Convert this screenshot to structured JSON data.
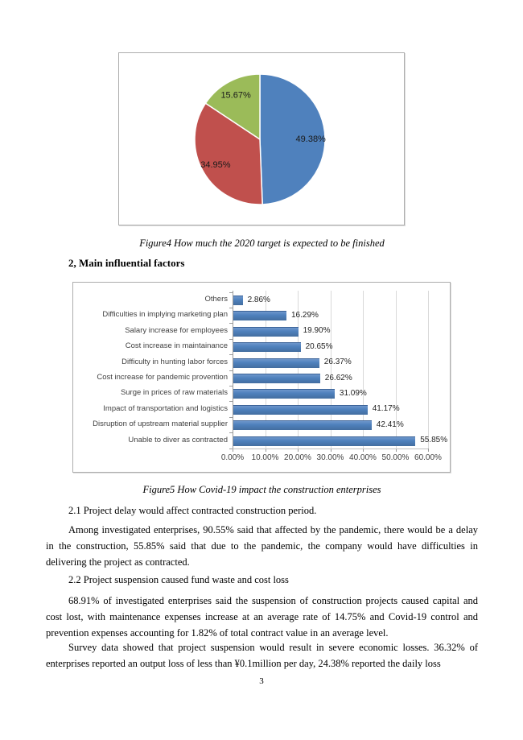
{
  "page": {
    "number": "3"
  },
  "figure4": {
    "caption": "Figure4 How much the 2020 target is expected to be finished"
  },
  "sections": {
    "main_heading": "2, Main influential factors"
  },
  "figure5": {
    "caption": "Figure5 How Covid-19 impact the construction enterprises"
  },
  "body": {
    "s21_heading": "2.1 Project delay would affect contracted construction period.",
    "p1": "Among investigated enterprises, 90.55% said that affected by the pandemic, there would be a delay in the construction, 55.85% said that due to the pandemic, the company would have difficulties in delivering the project as contracted.",
    "s22_heading": "2.2 Project suspension caused fund waste and cost loss",
    "p2": "68.91% of investigated enterprises said the suspension of construction projects caused capital and cost lost, with maintenance expenses increase at an average rate of 14.75% and Covid-19 control and prevention expenses accounting for 1.82% of total contract value in an average level.",
    "p3": "Survey data showed that project suspension would result in severe economic losses. 36.32% of enterprises reported an output loss of less than ¥0.1million per day, 24.38% reported the daily loss"
  },
  "chart_data": [
    {
      "type": "pie",
      "figure": "Figure4",
      "title": "How much the 2020 target is expected to be finished",
      "labels": [
        "49.38%",
        "34.95%",
        "15.67%"
      ],
      "values": [
        49.38,
        34.95,
        15.67
      ],
      "colors": [
        "#4F81BD",
        "#C0504D",
        "#9BBB59"
      ],
      "start_angle_deg": 0,
      "direction": "clockwise",
      "legend": "none"
    },
    {
      "type": "bar",
      "figure": "Figure5",
      "title": "How Covid-19 impact the construction enterprises",
      "orientation": "horizontal",
      "categories": [
        "Others",
        "Difficulties in implying marketing plan",
        "Salary increase for employees",
        "Cost increase in maintainance",
        "Difficulty in hunting labor forces",
        "Cost increase for pandemic provention",
        "Surge in prices of raw materials",
        "Impact of transportation and logistics",
        "Disruption of upstream material supplier",
        "Unable to diver as contracted"
      ],
      "values": [
        2.86,
        16.29,
        19.9,
        20.65,
        26.37,
        26.62,
        31.09,
        41.17,
        42.41,
        55.85
      ],
      "data_labels": [
        "2.86%",
        "16.29%",
        "19.90%",
        "20.65%",
        "26.37%",
        "26.62%",
        "31.09%",
        "41.17%",
        "42.41%",
        "55.85%"
      ],
      "xlim": [
        0,
        60
      ],
      "xticks": [
        "0.00%",
        "10.00%",
        "20.00%",
        "30.00%",
        "40.00%",
        "50.00%",
        "60.00%"
      ],
      "bar_color": "#4F81BD",
      "grid": true,
      "legend": "none"
    }
  ]
}
